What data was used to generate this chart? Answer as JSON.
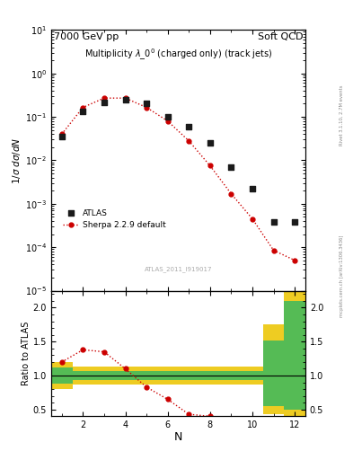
{
  "title_left": "7000 GeV pp",
  "title_right": "Soft QCD",
  "panel_title": "Multiplicity $\\lambda\\_0^0$ (charged only) (track jets)",
  "watermark": "ATLAS_2011_I919017",
  "right_label": "mcplots.cern.ch [arXiv:1306.3436]",
  "rivet_label": "Rivet 3.1.10, 2.7M events",
  "xlabel": "N",
  "ylabel_main": "1/$\\sigma$ d$\\sigma$/dN",
  "ylabel_ratio": "Ratio to ATLAS",
  "atlas_x": [
    1,
    2,
    3,
    4,
    5,
    6,
    7,
    8,
    9,
    10,
    11,
    12
  ],
  "atlas_y": [
    0.035,
    0.135,
    0.21,
    0.245,
    0.205,
    0.1,
    0.058,
    0.025,
    0.007,
    0.0022,
    0.00038,
    0.00038
  ],
  "sherpa_x": [
    1,
    2,
    3,
    4,
    5,
    6,
    7,
    8,
    9,
    10,
    11,
    12
  ],
  "sherpa_y": [
    0.04,
    0.165,
    0.27,
    0.27,
    0.165,
    0.08,
    0.028,
    0.0075,
    0.0017,
    0.00045,
    8.5e-05,
    5e-05
  ],
  "ratio_x": [
    1,
    2,
    3,
    4,
    5,
    6,
    7,
    8
  ],
  "ratio_y": [
    1.2,
    1.38,
    1.35,
    1.1,
    0.83,
    0.65,
    0.43,
    0.4
  ],
  "green_band_edges": [
    0.5,
    1.5,
    2.5,
    3.5,
    4.5,
    5.5,
    6.5,
    7.5,
    8.5,
    9.5,
    10.5,
    11.5,
    12.5
  ],
  "green_band_lo": [
    0.88,
    0.93,
    0.93,
    0.93,
    0.93,
    0.93,
    0.93,
    0.93,
    0.93,
    0.93,
    0.55,
    0.5
  ],
  "green_band_hi": [
    1.12,
    1.07,
    1.07,
    1.07,
    1.07,
    1.07,
    1.07,
    1.07,
    1.07,
    1.07,
    1.52,
    2.1
  ],
  "yellow_band_edges": [
    0.5,
    1.5,
    2.5,
    3.5,
    4.5,
    5.5,
    6.5,
    7.5,
    8.5,
    9.5,
    10.5,
    11.5,
    12.5
  ],
  "yellow_band_lo": [
    0.8,
    0.87,
    0.87,
    0.87,
    0.87,
    0.87,
    0.87,
    0.87,
    0.87,
    0.87,
    0.43,
    0.4
  ],
  "yellow_band_hi": [
    1.2,
    1.13,
    1.13,
    1.13,
    1.13,
    1.13,
    1.13,
    1.13,
    1.13,
    1.13,
    1.75,
    2.25
  ],
  "main_ylim": [
    1e-05,
    10
  ],
  "ratio_ylim": [
    0.4,
    2.25
  ],
  "ratio_yticks": [
    0.5,
    1.0,
    1.5,
    2.0
  ],
  "xlim": [
    0.5,
    12.5
  ],
  "xticks": [
    2,
    4,
    6,
    8,
    10,
    12
  ],
  "color_atlas": "#1a1a1a",
  "color_sherpa": "#cc0000",
  "color_green": "#55bb55",
  "color_yellow": "#eecc22",
  "color_bg": "#ffffff"
}
